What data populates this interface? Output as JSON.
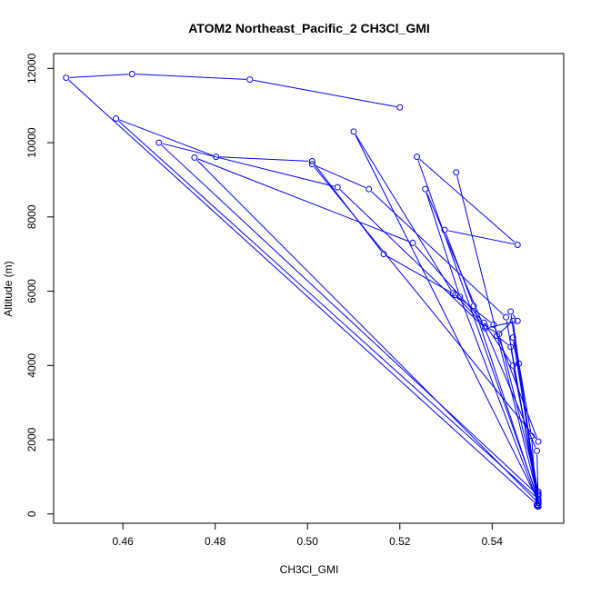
{
  "chart_data": {
    "type": "line",
    "title": "ATOM2 Northeast_Pacific_2 CH3Cl_GMI",
    "xlabel": "CH3Cl_GMI",
    "ylabel": "Altitude (m)",
    "xlim": [
      0.445,
      0.5555
    ],
    "ylim": [
      -250,
      12400
    ],
    "x_ticks": [
      0.46,
      0.48,
      0.5,
      0.52,
      0.54
    ],
    "x_tick_labels": [
      "0.46",
      "0.48",
      "0.50",
      "0.52",
      "0.54"
    ],
    "y_ticks": [
      0,
      2000,
      4000,
      6000,
      8000,
      10000,
      12000
    ],
    "y_tick_labels": [
      "0",
      "2000",
      "4000",
      "6000",
      "8000",
      "10000",
      "12000"
    ],
    "grid": false,
    "legend": "none",
    "series_color": "#0000ff",
    "marker": "open-circle",
    "series": [
      {
        "x": [
          0.52,
          0.4875,
          0.462,
          0.4477,
          0.5497,
          0.5497,
          0.5485,
          0.5458,
          0.5445,
          0.55,
          0.55,
          0.5415,
          0.5385,
          0.532,
          0.5165,
          0.501,
          0.4802,
          0.4585,
          0.55,
          0.544,
          0.541,
          0.5445,
          0.55,
          0.533,
          0.5255,
          0.5497,
          0.55,
          0.544,
          0.5455,
          0.5385,
          0.5065,
          0.4678,
          0.55,
          0.55,
          0.5445,
          0.5382,
          0.5228,
          0.4755,
          0.55,
          0.55,
          0.543,
          0.5133,
          0.501,
          0.55,
          0.5403,
          0.5315,
          0.51,
          0.55,
          0.536,
          0.5297,
          0.5455,
          0.5237,
          0.55,
          0.5322
        ],
        "y": [
          10950,
          11700,
          11850,
          11750,
          250,
          220,
          2100,
          4050,
          4750,
          500,
          600,
          4850,
          5050,
          5900,
          7000,
          9500,
          9620,
          10650,
          400,
          4500,
          4800,
          5200,
          300,
          5850,
          8750,
          1700,
          200,
          5450,
          5200,
          5000,
          8800,
          10000,
          500,
          550,
          4000,
          5150,
          7300,
          9600,
          300,
          230,
          5300,
          8750,
          9420,
          1950,
          5100,
          5950,
          10300,
          350,
          5600,
          7650,
          7250,
          9620,
          400,
          9200
        ]
      }
    ]
  }
}
